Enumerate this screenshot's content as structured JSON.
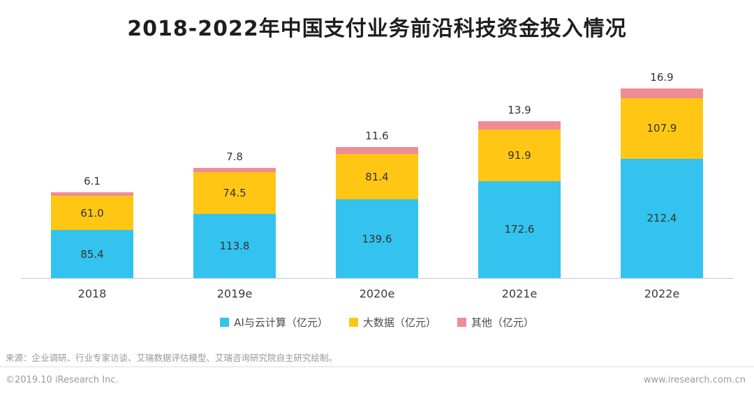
{
  "title": "2018-2022年中国支付业务前沿科技资金投入情况",
  "chart_data": {
    "type": "bar",
    "stacked": true,
    "title": "2018-2022年中国支付业务前沿科技资金投入情况",
    "categories": [
      "2018",
      "2019e",
      "2020e",
      "2021e",
      "2022e"
    ],
    "series": [
      {
        "name": "AI与云计算（亿元）",
        "color": "#33C3EE",
        "values": [
          85.4,
          113.8,
          139.6,
          172.6,
          212.4
        ],
        "label_position": "inside"
      },
      {
        "name": "大数据（亿元）",
        "color": "#FFC713",
        "values": [
          61.0,
          74.5,
          81.4,
          91.9,
          107.9
        ],
        "label_position": "inside"
      },
      {
        "name": "其他（亿元）",
        "color": "#F08C96",
        "values": [
          6.1,
          7.8,
          11.6,
          13.9,
          16.9
        ],
        "label_position": "above"
      }
    ],
    "xlabel": "",
    "ylabel": "",
    "ylim": [
      0,
      340
    ],
    "grid": false,
    "legend_position": "bottom"
  },
  "footer": {
    "source": "来源：企业调研、行业专家访谈、艾瑞数据评估模型、艾瑞咨询研究院自主研究绘制。",
    "copyright": "©2019.10 iResearch Inc.",
    "url": "www.iresearch.com.cn"
  }
}
